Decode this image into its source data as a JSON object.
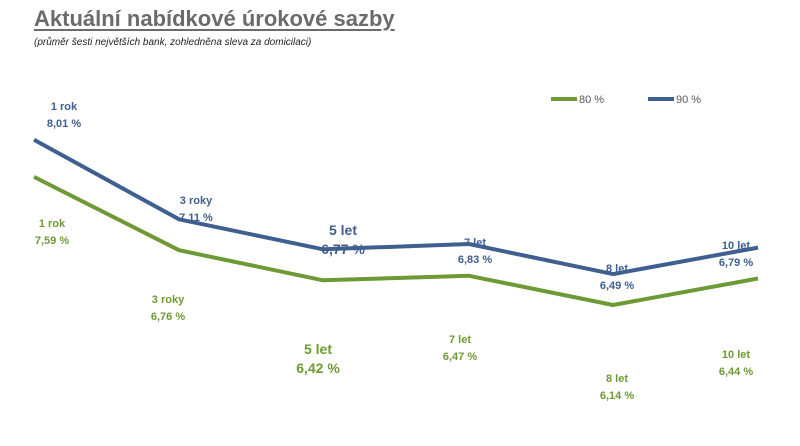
{
  "title": "Aktuální nabídkové úrokové sazby",
  "subtitle": "(průměr šesti největších bank, zohledněna sleva za domicilaci)",
  "chart_data": {
    "type": "line",
    "categories": [
      "1 rok",
      "3 roky",
      "5 let",
      "7 let",
      "8 let",
      "10 let"
    ],
    "series": [
      {
        "name": "80 %",
        "color": "#6d9a34",
        "values": [
          7.59,
          6.76,
          6.42,
          6.47,
          6.14,
          6.44
        ],
        "value_labels": [
          "7,59 %",
          "6,76 %",
          "6,42 %",
          "6,47 %",
          "6,14 %",
          "6,44 %"
        ]
      },
      {
        "name": "90 %",
        "color": "#3e5f8f",
        "values": [
          8.01,
          7.11,
          6.77,
          6.83,
          6.49,
          6.79
        ],
        "value_labels": [
          "8,01 %",
          "7,11 %",
          "6,77 %",
          "6,83 %",
          "6,49 %",
          "6,79 %"
        ]
      }
    ],
    "grid": false,
    "legend": "top-right"
  }
}
